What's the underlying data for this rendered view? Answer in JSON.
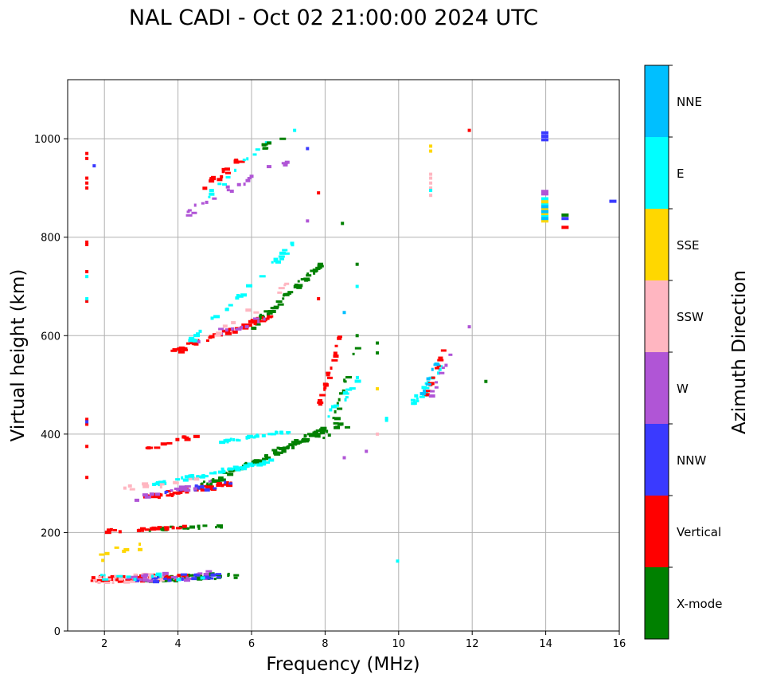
{
  "chart_data": {
    "type": "scatter",
    "title": "NAL CADI - Oct 02 21:00:00 2024 UTC",
    "xlabel": "Frequency (MHz)",
    "ylabel": "Virtual height (km)",
    "xlim": [
      1,
      16
    ],
    "ylim": [
      0,
      1120
    ],
    "xticks": [
      2,
      4,
      6,
      8,
      10,
      12,
      14,
      16
    ],
    "yticks": [
      0,
      200,
      400,
      600,
      800,
      1000
    ],
    "grid": true,
    "colorbar": {
      "label": "Azimuth Direction",
      "categories": [
        {
          "name": "X-mode",
          "color": "#008000"
        },
        {
          "name": "Vertical",
          "color": "#ff0000"
        },
        {
          "name": "NNW",
          "color": "#3a3aff"
        },
        {
          "name": "W",
          "color": "#b055d6"
        },
        {
          "name": "SSW",
          "color": "#ffb6c1"
        },
        {
          "name": "SSE",
          "color": "#ffd700"
        },
        {
          "name": "E",
          "color": "#00ffff"
        },
        {
          "name": "NNE",
          "color": "#00bfff"
        }
      ]
    },
    "traces": [
      {
        "category": "X-mode",
        "x": [
          3.0,
          5.6
        ],
        "y": [
          103,
          113
        ],
        "jitter": 6,
        "n": 60
      },
      {
        "category": "Vertical",
        "x": [
          1.6,
          4.2
        ],
        "y": [
          104,
          110
        ],
        "jitter": 6,
        "n": 45
      },
      {
        "category": "SSW",
        "x": [
          1.7,
          3.6
        ],
        "y": [
          104,
          110
        ],
        "jitter": 8,
        "n": 30
      },
      {
        "category": "W",
        "x": [
          2.4,
          4.8
        ],
        "y": [
          105,
          113
        ],
        "jitter": 8,
        "n": 25
      },
      {
        "category": "NNW",
        "x": [
          2.8,
          5.2
        ],
        "y": [
          104,
          112
        ],
        "jitter": 6,
        "n": 20
      },
      {
        "category": "E",
        "x": [
          1.8,
          5.0
        ],
        "y": [
          106,
          114
        ],
        "jitter": 8,
        "n": 12
      },
      {
        "category": "X-mode",
        "x": [
          3.2,
          5.2
        ],
        "y": [
          207,
          212
        ],
        "jitter": 3,
        "n": 20
      },
      {
        "category": "Vertical",
        "x": [
          2.0,
          4.2
        ],
        "y": [
          203,
          210
        ],
        "jitter": 3,
        "n": 22
      },
      {
        "category": "SSE",
        "x": [
          1.8,
          3.0
        ],
        "y": [
          150,
          175
        ],
        "jitter": 10,
        "n": 8
      },
      {
        "category": "X-mode",
        "x": [
          4.5,
          8.0
        ],
        "y": [
          290,
          410
        ],
        "jitter": 6,
        "n": 90
      },
      {
        "category": "E",
        "x": [
          3.0,
          6.5
        ],
        "y": [
          292,
          345
        ],
        "jitter": 4,
        "n": 55
      },
      {
        "category": "Vertical",
        "x": [
          3.0,
          5.5
        ],
        "y": [
          270,
          300
        ],
        "jitter": 5,
        "n": 45
      },
      {
        "category": "NNW",
        "x": [
          3.5,
          5.5
        ],
        "y": [
          280,
          300
        ],
        "jitter": 6,
        "n": 15
      },
      {
        "category": "W",
        "x": [
          2.8,
          5.0
        ],
        "y": [
          270,
          300
        ],
        "jitter": 6,
        "n": 15
      },
      {
        "category": "SSW",
        "x": [
          2.5,
          4.5
        ],
        "y": [
          290,
          306
        ],
        "jitter": 6,
        "n": 12
      },
      {
        "category": "E",
        "x": [
          5.0,
          7.0
        ],
        "y": [
          382,
          405
        ],
        "jitter": 3,
        "n": 30
      },
      {
        "category": "Vertical",
        "x": [
          3.0,
          4.5
        ],
        "y": [
          365,
          400
        ],
        "jitter": 4,
        "n": 12
      },
      {
        "category": "X-mode",
        "x": [
          7.0,
          8.8
        ],
        "y": [
          380,
          420
        ],
        "jitter": 10,
        "n": 22
      },
      {
        "category": "X-mode",
        "x": [
          6.0,
          7.9
        ],
        "y": [
          620,
          745
        ],
        "jitter": 6,
        "n": 45
      },
      {
        "category": "Vertical",
        "x": [
          3.8,
          6.5
        ],
        "y": [
          565,
          640
        ],
        "jitter": 6,
        "n": 50
      },
      {
        "category": "E",
        "x": [
          4.2,
          7.2
        ],
        "y": [
          580,
          790
        ],
        "jitter": 8,
        "n": 30
      },
      {
        "category": "W",
        "x": [
          4.5,
          6.5
        ],
        "y": [
          590,
          640
        ],
        "jitter": 8,
        "n": 12
      },
      {
        "category": "SSW",
        "x": [
          5.0,
          7.0
        ],
        "y": [
          600,
          700
        ],
        "jitter": 10,
        "n": 10
      },
      {
        "category": "Vertical",
        "x": [
          4.6,
          5.7
        ],
        "y": [
          895,
          960
        ],
        "jitter": 8,
        "n": 15
      },
      {
        "category": "W",
        "x": [
          4.2,
          7.0
        ],
        "y": [
          850,
          960
        ],
        "jitter": 10,
        "n": 20
      },
      {
        "category": "E",
        "x": [
          4.5,
          6.5
        ],
        "y": [
          860,
          995
        ],
        "jitter": 10,
        "n": 12
      },
      {
        "category": "X-mode",
        "x": [
          6.2,
          6.8
        ],
        "y": [
          980,
          1000
        ],
        "jitter": 6,
        "n": 6
      },
      {
        "category": "Vertical",
        "x": [
          7.6,
          8.4
        ],
        "y": [
          410,
          600
        ],
        "jitter": 10,
        "n": 20
      },
      {
        "category": "X-mode",
        "x": [
          8.2,
          8.9
        ],
        "y": [
          420,
          600
        ],
        "jitter": 10,
        "n": 15
      },
      {
        "category": "E",
        "x": [
          8.0,
          9.0
        ],
        "y": [
          430,
          520
        ],
        "jitter": 10,
        "n": 12
      },
      {
        "category": "E",
        "x": [
          10.3,
          11.2
        ],
        "y": [
          455,
          540
        ],
        "jitter": 10,
        "n": 20
      },
      {
        "category": "Vertical",
        "x": [
          10.7,
          11.2
        ],
        "y": [
          475,
          570
        ],
        "jitter": 6,
        "n": 12
      },
      {
        "category": "W",
        "x": [
          10.8,
          11.4
        ],
        "y": [
          470,
          560
        ],
        "jitter": 6,
        "n": 8
      },
      {
        "category": "NNE",
        "x": [
          10.6,
          11.1
        ],
        "y": [
          480,
          560
        ],
        "jitter": 6,
        "n": 8
      }
    ],
    "points": [
      {
        "category": "Vertical",
        "x": 1.5,
        "y": [
          970,
          960,
          920,
          910,
          900,
          790,
          785,
          730,
          670,
          430,
          420,
          375,
          312
        ]
      },
      {
        "category": "NNW",
        "x": 1.5,
        "y": [
          425
        ]
      },
      {
        "category": "E",
        "x": 1.5,
        "y": [
          720,
          675
        ]
      },
      {
        "category": "NNW",
        "x": 1.7,
        "y": [
          945
        ]
      },
      {
        "category": "SSE",
        "x": 10.85,
        "y": [
          985,
          975
        ]
      },
      {
        "category": "SSW",
        "x": 10.85,
        "y": [
          928,
          920,
          910,
          900,
          885
        ]
      },
      {
        "category": "E",
        "x": 10.85,
        "y": [
          895
        ]
      },
      {
        "category": "NNW",
        "x": 13.9,
        "y": [
          1012,
          1005,
          998
        ]
      },
      {
        "category": "W",
        "x": 13.9,
        "y": [
          893,
          888
        ]
      },
      {
        "category": "E",
        "x": 13.9,
        "y": [
          878,
          866,
          842
        ]
      },
      {
        "category": "SSE",
        "x": 13.9,
        "y": [
          872,
          858,
          848,
          833
        ]
      },
      {
        "category": "NNE",
        "x": 13.9,
        "y": [
          862,
          852,
          838
        ]
      },
      {
        "category": "X-mode",
        "x": 14.45,
        "y": [
          845
        ]
      },
      {
        "category": "NNW",
        "x": 14.45,
        "y": [
          838
        ]
      },
      {
        "category": "Vertical",
        "x": 14.45,
        "y": [
          820
        ]
      },
      {
        "category": "NNW",
        "x": 15.75,
        "y": [
          873
        ]
      },
      {
        "category": "W",
        "x": 11.9,
        "y": [
          618
        ]
      },
      {
        "category": "Vertical",
        "x": 11.9,
        "y": [
          1017
        ]
      },
      {
        "category": "X-mode",
        "x": 12.35,
        "y": [
          507
        ]
      },
      {
        "category": "E",
        "x": 9.95,
        "y": [
          142
        ]
      },
      {
        "category": "X-mode",
        "x": 8.45,
        "y": [
          828
        ]
      },
      {
        "category": "E",
        "x": 7.15,
        "y": [
          1017
        ]
      },
      {
        "category": "NNW",
        "x": 7.5,
        "y": [
          980
        ]
      },
      {
        "category": "Vertical",
        "x": 7.8,
        "y": [
          890,
          675
        ]
      },
      {
        "category": "W",
        "x": 7.5,
        "y": [
          833
        ]
      },
      {
        "category": "X-mode",
        "x": 8.85,
        "y": [
          745,
          600
        ]
      },
      {
        "category": "E",
        "x": 8.85,
        "y": [
          700
        ]
      },
      {
        "category": "NNE",
        "x": 8.5,
        "y": [
          647
        ]
      },
      {
        "category": "X-mode",
        "x": 9.4,
        "y": [
          585,
          565
        ]
      },
      {
        "category": "SSE",
        "x": 9.4,
        "y": [
          492
        ]
      },
      {
        "category": "E",
        "x": 9.65,
        "y": [
          432,
          428
        ]
      },
      {
        "category": "W",
        "x": 8.5,
        "y": [
          352
        ]
      },
      {
        "category": "W",
        "x": 9.1,
        "y": [
          365
        ]
      },
      {
        "category": "SSW",
        "x": 9.4,
        "y": [
          400
        ]
      }
    ]
  }
}
